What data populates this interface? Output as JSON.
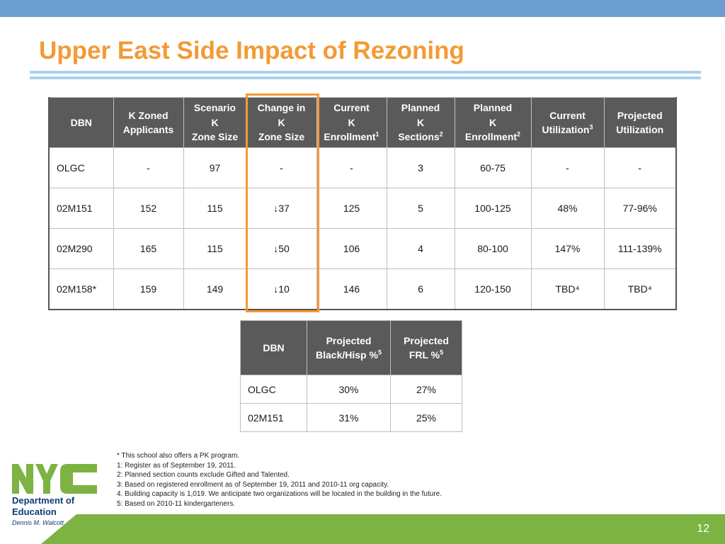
{
  "slide": {
    "title": "Upper East Side Impact of Rezoning",
    "page_number": "12"
  },
  "colors": {
    "top_bar": "#6b9dd0",
    "title": "#f39a35",
    "header_bg": "#5a5a5a",
    "highlight": "#f39a35",
    "bottom_bar": "#7cb342"
  },
  "main_table": {
    "headers": [
      {
        "lines": [
          "DBN"
        ]
      },
      {
        "lines": [
          "K Zoned",
          "Applicants"
        ]
      },
      {
        "lines": [
          "Scenario",
          "K",
          "Zone Size"
        ]
      },
      {
        "lines": [
          "Change in",
          "K",
          "Zone Size"
        ]
      },
      {
        "lines": [
          "Current",
          "K",
          "Enrollment"
        ],
        "sup": "1"
      },
      {
        "lines": [
          "Planned",
          "K",
          "Sections"
        ],
        "sup": "2"
      },
      {
        "lines": [
          "Planned",
          "K",
          "Enrollment"
        ],
        "sup": "2"
      },
      {
        "lines": [
          "Current",
          "Utilization"
        ],
        "sup": "3"
      },
      {
        "lines": [
          "Projected",
          "Utilization"
        ]
      }
    ],
    "rows": [
      [
        "OLGC",
        "-",
        "97",
        "-",
        "-",
        "3",
        "60-75",
        "-",
        "-"
      ],
      [
        "02M151",
        "152",
        "115",
        "↓37",
        "125",
        "5",
        "100-125",
        "48%",
        "77-96%"
      ],
      [
        "02M290",
        "165",
        "115",
        "↓50",
        "106",
        "4",
        "80-100",
        "147%",
        "111-139%"
      ],
      [
        "02M158*",
        "159",
        "149",
        "↓10",
        "146",
        "6",
        "120-150",
        "TBD⁴",
        "TBD⁴"
      ]
    ]
  },
  "demo_table": {
    "headers": [
      {
        "lines": [
          "DBN"
        ]
      },
      {
        "lines": [
          "Projected",
          "Black/Hisp %"
        ],
        "sup": "5"
      },
      {
        "lines": [
          "Projected",
          "FRL %"
        ],
        "sup": "5"
      }
    ],
    "rows": [
      [
        "OLGC",
        "30%",
        "27%"
      ],
      [
        "02M151",
        "31%",
        "25%"
      ]
    ]
  },
  "footnotes": [
    "* This school also offers a PK program.",
    "1: Register as of September 19, 2011.",
    "2: Planned section counts exclude Gifted and Talented.",
    "3: Based on registered enrollment as of September 19, 2011 and 2010-11 org capacity.",
    "4. Building capacity is 1,019. We anticipate two organizations will be located in the building in the future.",
    "5: Based on 2010-11 kindergarteners."
  ],
  "logo": {
    "mark_text": "NYC",
    "line1": "Department of",
    "line2": "Education",
    "chancellor": "Dennis M. Walcott, Chancellor",
    "mark_color": "#7cb342",
    "text_color": "#0d3b78"
  }
}
